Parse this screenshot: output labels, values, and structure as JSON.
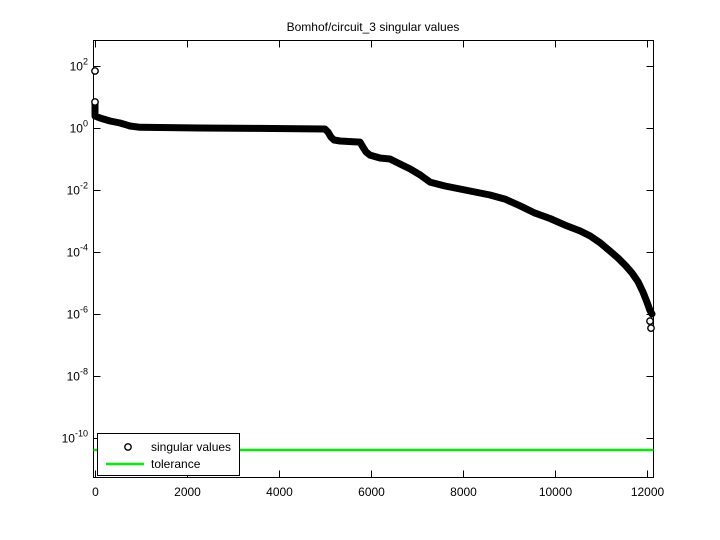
{
  "figure_title": "Bomhof/circuit_3 singular values",
  "chart_data": {
    "type": "scatter",
    "title": "Bomhof/circuit_3 singular values",
    "xlabel": "",
    "ylabel": "",
    "grid": false,
    "x_axis": {
      "ticks": [
        0,
        2000,
        4000,
        6000,
        8000,
        10000,
        12000
      ],
      "min": 0,
      "max": 12150
    },
    "y_axis": {
      "scale": "log",
      "tick_exponents": [
        2,
        0,
        -2,
        -4,
        -6,
        -8,
        -10
      ],
      "min": 3e-12,
      "max": 700.0
    },
    "legend": {
      "position": "southwest",
      "entries": [
        {
          "label": "singular values",
          "marker": "circle",
          "color": "#000000"
        },
        {
          "label": "tolerance",
          "marker": "line",
          "color": "#00ee00"
        }
      ]
    },
    "series": [
      {
        "name": "singular values",
        "type": "marker-curve",
        "color": "#000000",
        "curve": [
          [
            0,
            6.9
          ],
          [
            0,
            2.44
          ],
          [
            109,
            2.1
          ],
          [
            326,
            1.68
          ],
          [
            543,
            1.45
          ],
          [
            761,
            1.16
          ],
          [
            978,
            1.05
          ],
          [
            2283,
            1.0
          ],
          [
            3587,
            0.97
          ],
          [
            5000,
            0.93
          ],
          [
            5065,
            0.74
          ],
          [
            5130,
            0.51
          ],
          [
            5196,
            0.41
          ],
          [
            5326,
            0.38
          ],
          [
            5761,
            0.35
          ],
          [
            5826,
            0.24
          ],
          [
            5891,
            0.17
          ],
          [
            5978,
            0.134
          ],
          [
            6196,
            0.108
          ],
          [
            6413,
            0.1
          ],
          [
            6630,
            0.069
          ],
          [
            6848,
            0.048
          ],
          [
            7065,
            0.031
          ],
          [
            7283,
            0.018
          ],
          [
            7609,
            0.0135
          ],
          [
            7935,
            0.0108
          ],
          [
            8261,
            0.0086
          ],
          [
            8587,
            0.0069
          ],
          [
            8913,
            0.0051
          ],
          [
            9239,
            0.0031
          ],
          [
            9565,
            0.0018
          ],
          [
            9891,
            0.0012
          ],
          [
            10217,
            0.00074
          ],
          [
            10543,
            0.00048
          ],
          [
            10761,
            0.00033
          ],
          [
            10978,
            0.0002
          ],
          [
            11196,
            0.000107
          ],
          [
            11370,
            6.4e-05
          ],
          [
            11543,
            3.5e-05
          ],
          [
            11674,
            2.1e-05
          ],
          [
            11804,
            1.1e-05
          ],
          [
            11913,
            5.1e-06
          ],
          [
            12000,
            2.4e-06
          ],
          [
            12065,
            1.3e-06
          ],
          [
            12109,
            1e-06
          ]
        ],
        "ring_markers": [
          [
            0,
            69
          ],
          [
            0,
            6.9
          ],
          [
            12065,
            5.9e-07
          ],
          [
            12087,
            3.5e-07
          ]
        ]
      },
      {
        "name": "tolerance",
        "type": "hline",
        "color": "#00ee00",
        "value": 4.1e-11
      }
    ]
  }
}
